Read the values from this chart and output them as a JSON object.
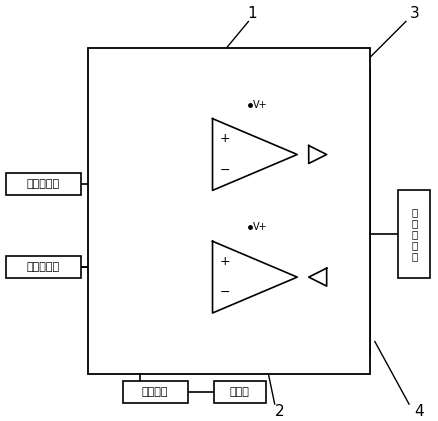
{
  "bg_color": "#ffffff",
  "labels": {
    "ac_port": "交流电端口",
    "dc_port": "直流电端口",
    "power_out": "电\n源\n输\n出\n端",
    "boost": "升压电路",
    "inverter": "逆变器",
    "vplus": "V+",
    "num1": "1",
    "num2": "2",
    "num3": "3",
    "num4": "4"
  },
  "lw": 1.2
}
